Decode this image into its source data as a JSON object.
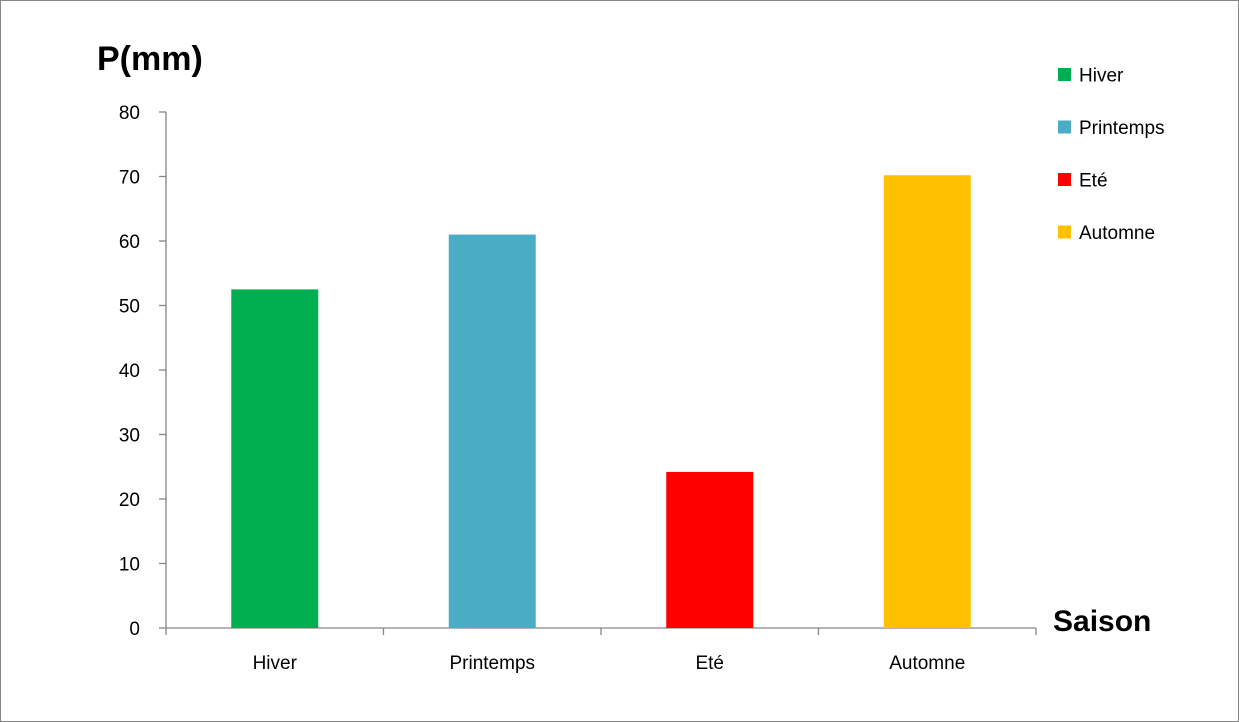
{
  "chart_data": {
    "type": "bar",
    "ylabel": "P(mm)",
    "xlabel": "Saison",
    "categories": [
      "Hiver",
      "Printemps",
      "Eté",
      "Automne"
    ],
    "values": [
      52.5,
      61,
      24.2,
      70.2
    ],
    "colors": [
      "#00b050",
      "#4bacc6",
      "#ff0000",
      "#ffc000"
    ],
    "ylim": [
      0,
      80
    ],
    "yticks": [
      0,
      10,
      20,
      30,
      40,
      50,
      60,
      70,
      80
    ],
    "grid": false,
    "legend_position": "top-right",
    "legend": [
      "Hiver",
      "Printemps",
      "Eté",
      "Automne"
    ]
  }
}
